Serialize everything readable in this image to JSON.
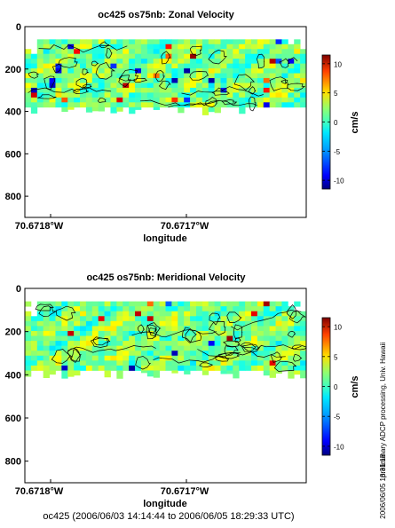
{
  "chart_data": [
    {
      "type": "heatmap",
      "title": "oc425 os75nb: Zonal Velocity",
      "xlabel": "longitude",
      "ylabel": "",
      "xtick_labels": [
        "70.6718°W",
        "70.6717°W"
      ],
      "ytick_labels": [
        "0",
        "200",
        "400",
        "600",
        "800"
      ],
      "yticks": [
        0,
        200,
        400,
        600,
        800
      ],
      "ylim": [
        900,
        0
      ],
      "data_depth_range": [
        60,
        380
      ],
      "colorbar": {
        "label": "cm/s",
        "ticks": [
          -10,
          -5,
          0,
          5,
          10
        ],
        "range": [
          -11.5,
          11.5
        ]
      },
      "grid": false
    },
    {
      "type": "heatmap",
      "title": "oc425 os75nb: Meridional Velocity",
      "xlabel": "longitude",
      "ylabel": "",
      "xtick_labels": [
        "70.6718°W",
        "70.6717°W"
      ],
      "ytick_labels": [
        "0",
        "200",
        "400",
        "600",
        "800"
      ],
      "yticks": [
        0,
        200,
        400,
        600,
        800
      ],
      "ylim": [
        900,
        0
      ],
      "data_depth_range": [
        60,
        380
      ],
      "colorbar": {
        "label": "cm/s",
        "ticks": [
          -10,
          -5,
          0,
          5,
          10
        ],
        "range": [
          -11.5,
          11.5
        ]
      },
      "grid": false
    }
  ],
  "footer": {
    "time_range": "oc425 (2006/06/03 14:14:44 to 2006/06/05 18:29:33 UTC)",
    "side_note": "preliminary ADCP processing,   Univ. Hawaii",
    "side_stamp": "2006/06/05 18:31:18"
  },
  "colors": {
    "colormap": [
      "#00007f",
      "#0000ff",
      "#0080ff",
      "#00e0ff",
      "#40ffbf",
      "#80ff80",
      "#bfff40",
      "#ffe000",
      "#ff8000",
      "#ff0000",
      "#7f0000"
    ]
  }
}
